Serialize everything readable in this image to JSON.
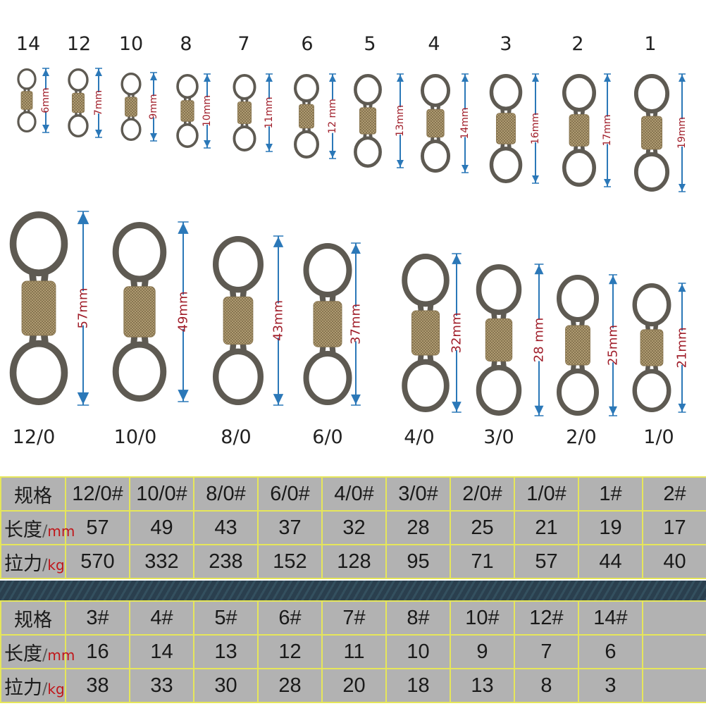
{
  "colors": {
    "arrow": "#2b78b8",
    "measure_text": "#a01e2a",
    "table_bg": "#b2b2b2",
    "table_border": "#e6e65a",
    "unit_red": "#c0161a"
  },
  "top_row": [
    {
      "size": "14",
      "length": "6mm"
    },
    {
      "size": "12",
      "length": "7mm"
    },
    {
      "size": "10",
      "length": "9mm"
    },
    {
      "size": "8",
      "length": "10mm"
    },
    {
      "size": "7",
      "length": "11mm"
    },
    {
      "size": "6",
      "length": "12 mm"
    },
    {
      "size": "5",
      "length": "13mm"
    },
    {
      "size": "4",
      "length": "14mm"
    },
    {
      "size": "3",
      "length": "16mm"
    },
    {
      "size": "2",
      "length": "17mm"
    },
    {
      "size": "1",
      "length": "19mm"
    }
  ],
  "bottom_row": [
    {
      "size": "12/0",
      "length": "57mm"
    },
    {
      "size": "10/0",
      "length": "49mm"
    },
    {
      "size": "8/0",
      "length": "43mm"
    },
    {
      "size": "6/0",
      "length": "37mm"
    },
    {
      "size": "4/0",
      "length": "32mm"
    },
    {
      "size": "3/0",
      "length": "28 mm"
    },
    {
      "size": "2/0",
      "length": "25mm"
    },
    {
      "size": "1/0",
      "length": "21mm"
    }
  ],
  "table": {
    "spec_label": "规格",
    "length_label": "长度",
    "length_unit": "mm",
    "strength_label": "拉力",
    "strength_unit": "kg",
    "part1": {
      "sizes": [
        "12/0#",
        "10/0#",
        "8/0#",
        "6/0#",
        "4/0#",
        "3/0#",
        "2/0#",
        "1/0#",
        "1#",
        "2#"
      ],
      "lengths": [
        "57",
        "49",
        "43",
        "37",
        "32",
        "28",
        "25",
        "21",
        "19",
        "17"
      ],
      "strengths": [
        "570",
        "332",
        "238",
        "152",
        "128",
        "95",
        "71",
        "57",
        "44",
        "40"
      ]
    },
    "part2": {
      "sizes": [
        "3#",
        "4#",
        "5#",
        "6#",
        "7#",
        "8#",
        "10#",
        "12#",
        "14#",
        ""
      ],
      "lengths": [
        "16",
        "14",
        "13",
        "12",
        "11",
        "10",
        "9",
        "7",
        "6",
        ""
      ],
      "strengths": [
        "38",
        "33",
        "30",
        "28",
        "20",
        "18",
        "13",
        "8",
        "3",
        ""
      ]
    }
  }
}
